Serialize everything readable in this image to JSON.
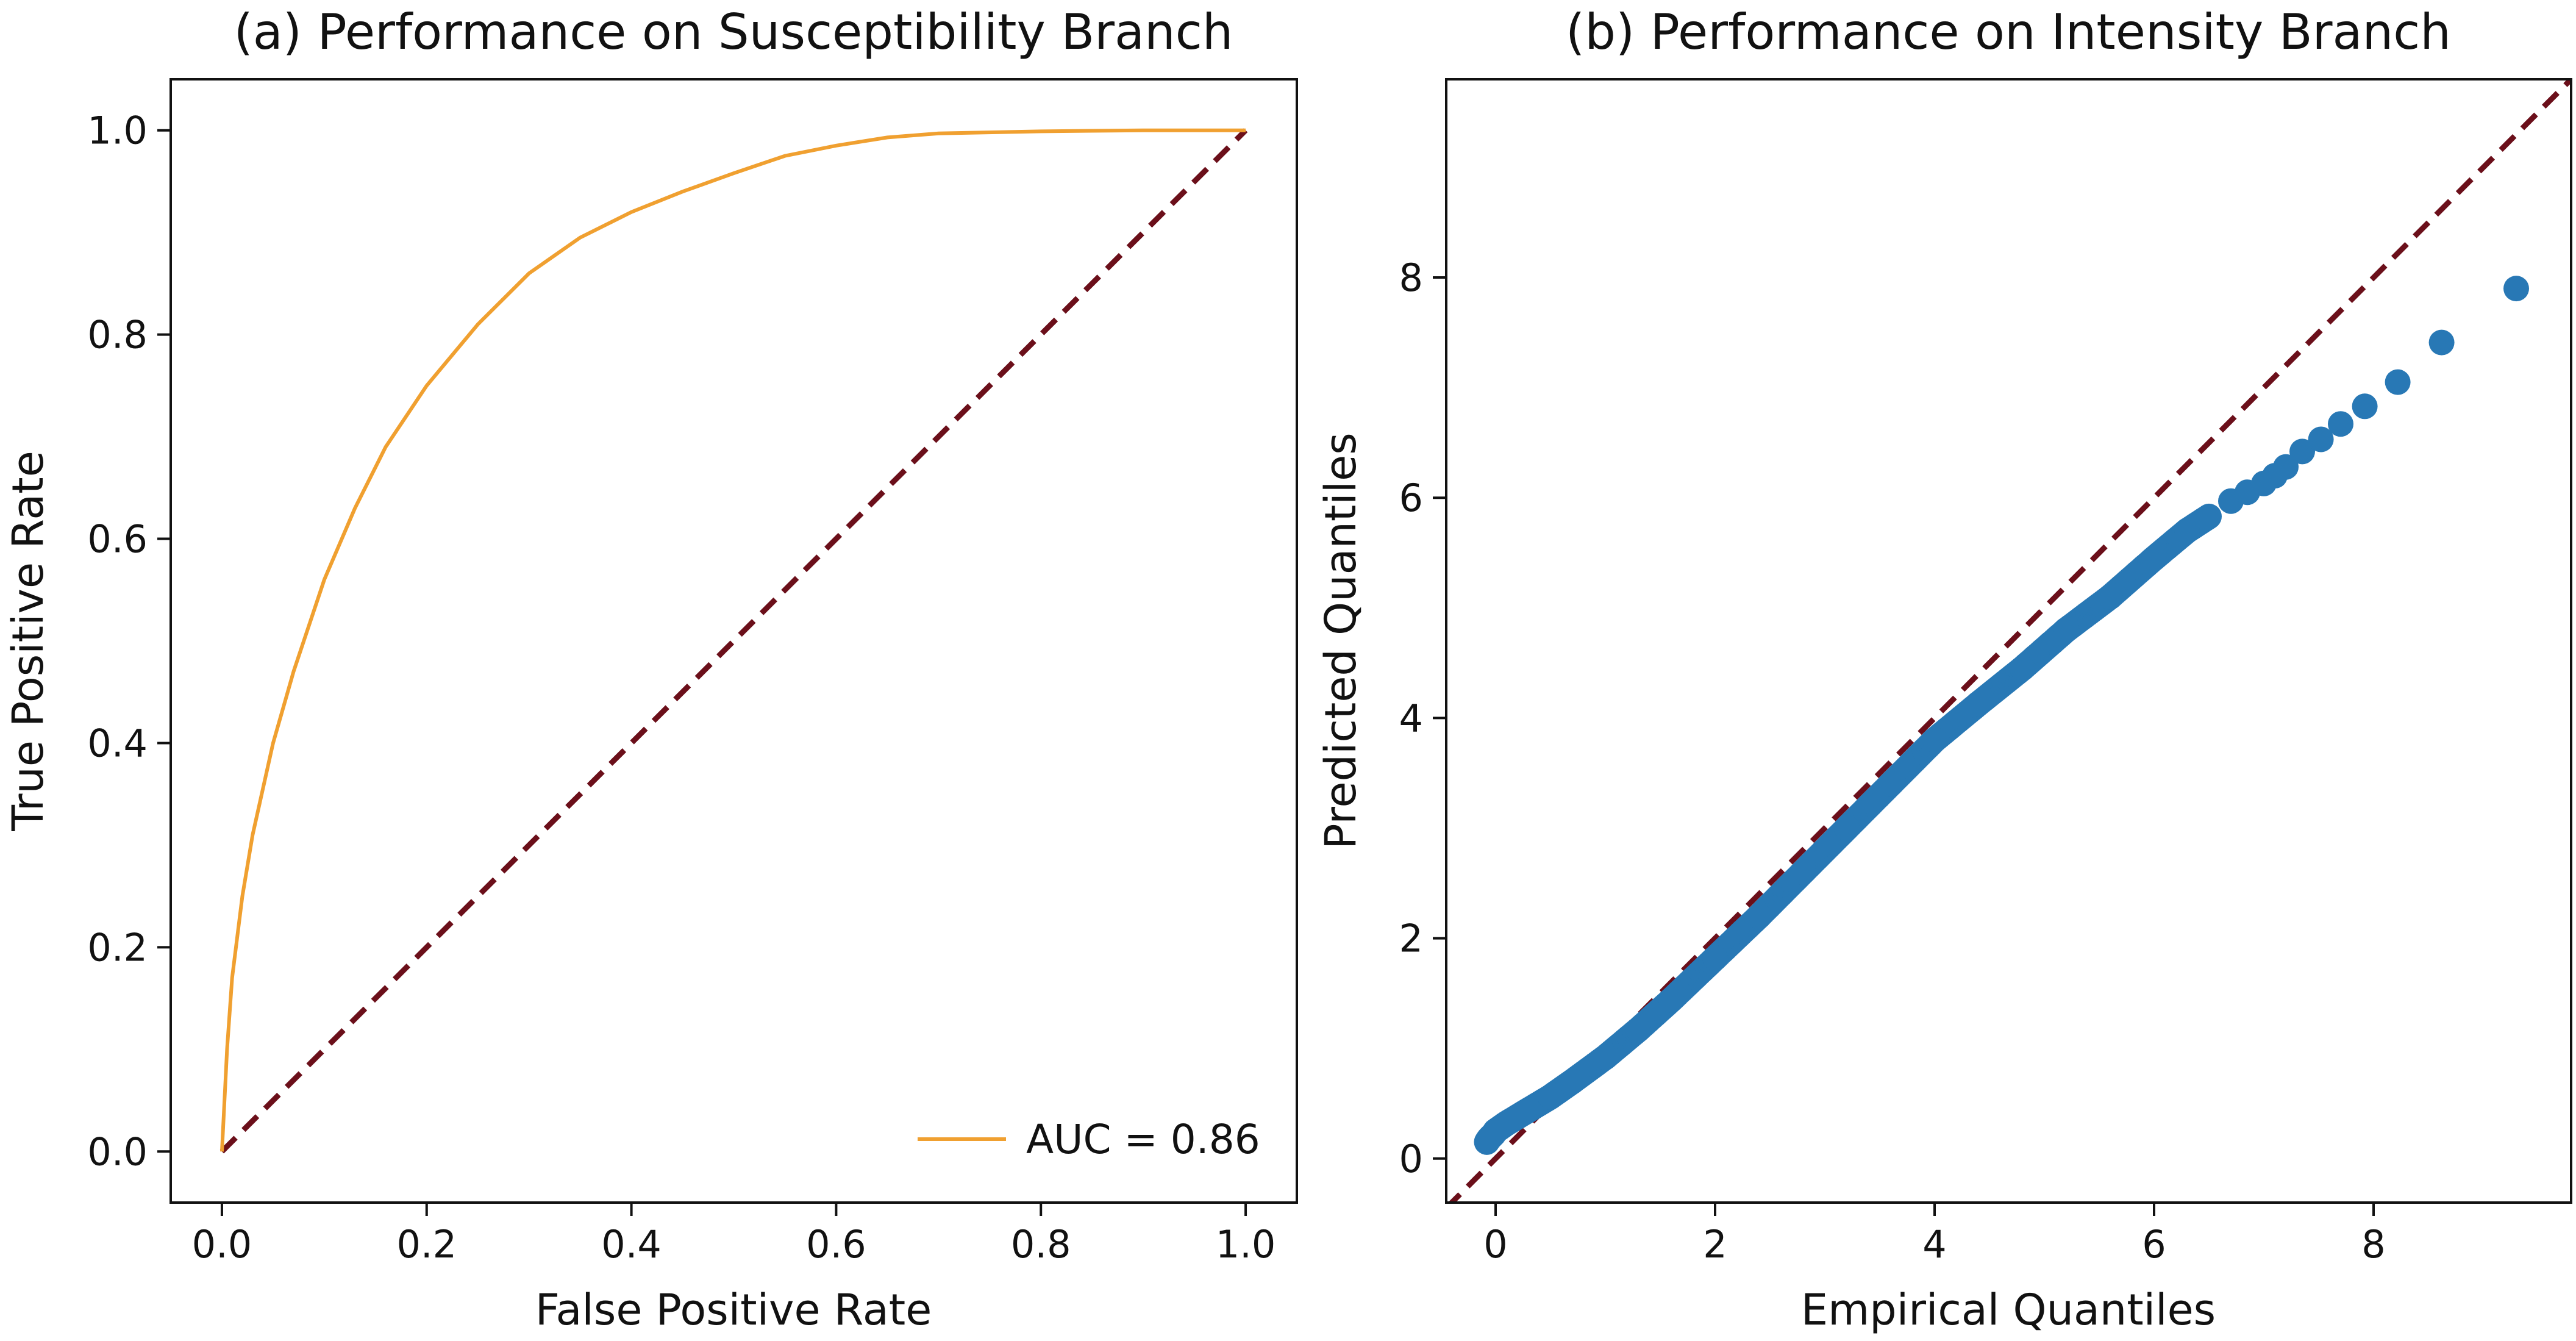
{
  "chart_data": [
    {
      "id": "a",
      "type": "line",
      "title": "(a) Performance on Susceptibility Branch",
      "xlabel": "False Positive Rate",
      "ylabel": "True Positive Rate",
      "xlim": [
        -0.05,
        1.05
      ],
      "ylim": [
        -0.05,
        1.05
      ],
      "xticks": [
        "0.0",
        "0.2",
        "0.4",
        "0.6",
        "0.8",
        "1.0"
      ],
      "yticks": [
        "0.0",
        "0.2",
        "0.4",
        "0.6",
        "0.8",
        "1.0"
      ],
      "legend_position": "bottom-right",
      "series": [
        {
          "name": "AUC = 0.86",
          "color": "#f0a030",
          "x": [
            0,
            0.005,
            0.01,
            0.02,
            0.03,
            0.05,
            0.07,
            0.1,
            0.13,
            0.16,
            0.2,
            0.25,
            0.3,
            0.35,
            0.4,
            0.45,
            0.5,
            0.55,
            0.6,
            0.65,
            0.7,
            0.8,
            0.9,
            1.0
          ],
          "y": [
            0,
            0.1,
            0.17,
            0.25,
            0.31,
            0.4,
            0.47,
            0.56,
            0.63,
            0.69,
            0.75,
            0.81,
            0.86,
            0.895,
            0.92,
            0.94,
            0.958,
            0.975,
            0.985,
            0.993,
            0.997,
            0.999,
            1.0,
            1.0
          ]
        },
        {
          "name": "reference",
          "color": "#6b0f1a",
          "dashed": true,
          "x": [
            0,
            1
          ],
          "y": [
            0,
            1
          ]
        }
      ]
    },
    {
      "id": "b",
      "type": "scatter",
      "title": "(b) Performance on Intensity Branch",
      "xlabel": "Empirical Quantiles",
      "ylabel": "Predicted Quantiles",
      "xlim": [
        -0.45,
        9.8
      ],
      "ylim": [
        -0.4,
        9.8
      ],
      "xticks": [
        "0",
        "2",
        "4",
        "6",
        "8"
      ],
      "yticks": [
        "0",
        "2",
        "4",
        "6",
        "8"
      ],
      "series": [
        {
          "name": "quantiles",
          "color": "#2878b5",
          "x": [
            -0.08,
            -0.06,
            -0.04,
            -0.02,
            0.0,
            0.1,
            0.2,
            0.3,
            0.5,
            0.7,
            1.0,
            1.3,
            1.6,
            2.0,
            2.4,
            2.8,
            3.2,
            3.6,
            4.0,
            4.4,
            4.8,
            5.2,
            5.6,
            6.0,
            6.3,
            6.5,
            6.7,
            6.85,
            7.0,
            7.1,
            7.2,
            7.35,
            7.52,
            7.7,
            7.92,
            8.22,
            8.62,
            9.3
          ],
          "y": [
            0.15,
            0.18,
            0.2,
            0.22,
            0.25,
            0.32,
            0.38,
            0.44,
            0.56,
            0.7,
            0.92,
            1.17,
            1.44,
            1.82,
            2.2,
            2.6,
            3.0,
            3.4,
            3.8,
            4.13,
            4.45,
            4.8,
            5.1,
            5.45,
            5.7,
            5.83,
            5.97,
            6.05,
            6.13,
            6.2,
            6.28,
            6.42,
            6.53,
            6.67,
            6.83,
            7.05,
            7.41,
            7.9
          ]
        },
        {
          "name": "reference",
          "color": "#6b0f1a",
          "dashed": true,
          "x": [
            -0.45,
            9.8
          ],
          "y": [
            -0.45,
            9.8
          ]
        }
      ]
    }
  ]
}
